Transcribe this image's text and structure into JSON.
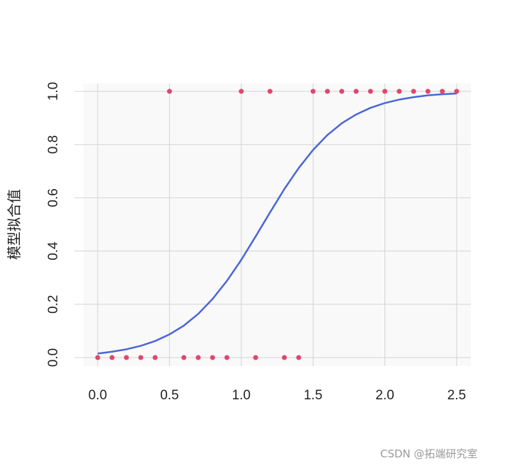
{
  "chart_data": {
    "type": "scatter",
    "title": "",
    "xlabel": "",
    "ylabel": "模型拟合值",
    "xlim": [
      0,
      2.5
    ],
    "ylim": [
      0,
      1
    ],
    "grid": true,
    "x_ticks": [
      "0.0",
      "0.5",
      "1.0",
      "1.5",
      "2.0",
      "2.5"
    ],
    "y_ticks": [
      "0.0",
      "0.2",
      "0.4",
      "0.6",
      "0.8",
      "1.0"
    ],
    "points": {
      "color": "#e0476b",
      "x": [
        0,
        0.1,
        0.2,
        0.3,
        0.4,
        0.5,
        0.6,
        0.7,
        0.8,
        0.9,
        1.0,
        1.1,
        1.2,
        1.3,
        1.4,
        1.5,
        1.6,
        1.7,
        1.8,
        1.9,
        2.0,
        2.1,
        2.2,
        2.3,
        2.4,
        2.5
      ],
      "y": [
        0,
        0,
        0,
        0,
        0,
        1,
        0,
        0,
        0,
        0,
        1,
        0,
        1,
        0,
        0,
        1,
        1,
        1,
        1,
        1,
        1,
        1,
        1,
        1,
        1,
        1
      ]
    },
    "fitted_curve": {
      "type": "line",
      "color": "#4a67d6",
      "x": [
        0,
        0.1,
        0.2,
        0.3,
        0.4,
        0.5,
        0.6,
        0.7,
        0.8,
        0.9,
        1.0,
        1.1,
        1.2,
        1.3,
        1.4,
        1.5,
        1.6,
        1.7,
        1.8,
        1.9,
        2.0,
        2.1,
        2.2,
        2.3,
        2.4,
        2.5
      ],
      "y": [
        0.015,
        0.022,
        0.031,
        0.044,
        0.062,
        0.087,
        0.12,
        0.164,
        0.22,
        0.288,
        0.367,
        0.455,
        0.545,
        0.633,
        0.712,
        0.78,
        0.836,
        0.88,
        0.913,
        0.938,
        0.956,
        0.969,
        0.978,
        0.985,
        0.989,
        0.992
      ]
    },
    "panel_background": "#f9f9f9",
    "grid_color": "#d3d3d3"
  },
  "watermark": "CSDN @拓端研究室"
}
